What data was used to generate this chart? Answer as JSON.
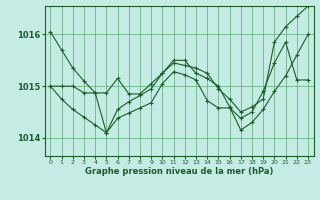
{
  "xlabel": "Graphe pression niveau de la mer (hPa)",
  "background_color": "#c5ece4",
  "plot_bg_color": "#c5ece4",
  "grid_color": "#5aaa70",
  "line_color": "#1a5c2a",
  "ylim": [
    1013.65,
    1016.55
  ],
  "xlim": [
    -0.5,
    23.5
  ],
  "yticks": [
    1014,
    1015,
    1016
  ],
  "xticks": [
    0,
    1,
    2,
    3,
    4,
    5,
    6,
    7,
    8,
    9,
    10,
    11,
    12,
    13,
    14,
    15,
    16,
    17,
    18,
    19,
    20,
    21,
    22,
    23
  ],
  "series": [
    [
      1016.05,
      1015.7,
      1015.35,
      1015.1,
      1014.87,
      1014.1,
      1014.55,
      1014.7,
      1014.82,
      1014.95,
      1015.25,
      1015.45,
      1015.4,
      1015.35,
      1015.25,
      1014.95,
      1014.75,
      1014.5,
      1014.6,
      1014.75,
      1015.85,
      1016.15,
      1016.35,
      1016.55
    ],
    [
      1015.0,
      1015.0,
      1015.0,
      1014.87,
      1014.87,
      1014.87,
      1015.15,
      1014.85,
      1014.85,
      1015.05,
      1015.25,
      1015.5,
      1015.5,
      1015.25,
      1015.15,
      1015.0,
      1014.6,
      1014.15,
      1014.3,
      1014.55,
      1014.9,
      1015.2,
      1015.6,
      1016.0
    ],
    [
      1015.0,
      1014.75,
      1014.55,
      1014.4,
      1014.25,
      1014.1,
      1014.38,
      1014.48,
      1014.58,
      1014.68,
      1015.05,
      1015.28,
      1015.22,
      1015.12,
      1014.72,
      1014.58,
      1014.58,
      1014.38,
      1014.5,
      1014.9,
      1015.45,
      1015.85,
      1015.12,
      1015.12
    ]
  ]
}
